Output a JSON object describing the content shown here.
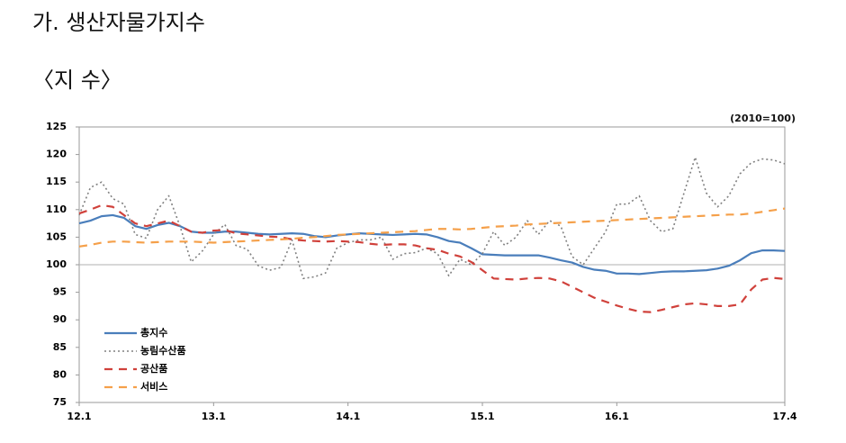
{
  "heading": "가. 생산자물가지수",
  "subheading": "〈지 수〉",
  "chart_data": {
    "type": "line",
    "note": "(2010=100)",
    "categories": [
      "12.1",
      null,
      null,
      null,
      null,
      null,
      null,
      null,
      null,
      null,
      null,
      null,
      "13.1",
      null,
      null,
      null,
      null,
      null,
      null,
      null,
      null,
      null,
      null,
      null,
      "14.1",
      null,
      null,
      null,
      null,
      null,
      null,
      null,
      null,
      null,
      null,
      null,
      "15.1",
      null,
      null,
      null,
      null,
      null,
      null,
      null,
      null,
      null,
      null,
      null,
      "16.1",
      null,
      null,
      null,
      null,
      null,
      null,
      null,
      null,
      null,
      null,
      null,
      null,
      null,
      null,
      "17.4"
    ],
    "ylim": [
      75,
      125
    ],
    "yticks": [
      75,
      80,
      85,
      90,
      95,
      100,
      105,
      110,
      115,
      120,
      125
    ],
    "reference_line": 100,
    "legend": "lower-left",
    "series": [
      {
        "name": "총지수",
        "color": "#4a7ebb",
        "style": "solid",
        "values": [
          107.5,
          108,
          108.8,
          109,
          108.5,
          107,
          106.5,
          107.2,
          107.6,
          107,
          106,
          105.8,
          105.8,
          106,
          106,
          105.8,
          105.6,
          105.5,
          105.6,
          105.7,
          105.6,
          105.2,
          105,
          105.3,
          105.5,
          105.7,
          105.6,
          105.5,
          105.4,
          105.5,
          105.6,
          105.5,
          105,
          104.3,
          104,
          103,
          101.9,
          101.8,
          101.7,
          101.7,
          101.7,
          101.7,
          101.3,
          100.8,
          100.4,
          99.6,
          99.1,
          98.9,
          98.4,
          98.4,
          98.3,
          98.5,
          98.7,
          98.8,
          98.8,
          98.9,
          99,
          99.3,
          99.8,
          100.8,
          102.1,
          102.6,
          102.6,
          102.5
        ]
      },
      {
        "name": "농림수산품",
        "color": "#808080",
        "style": "dotted",
        "values": [
          109,
          114,
          115,
          112,
          111,
          105.5,
          104.8,
          110,
          112.5,
          107,
          100.5,
          102.5,
          105.5,
          107.3,
          103.5,
          102.8,
          99.8,
          99,
          99.5,
          104.5,
          97.5,
          97.8,
          98.5,
          103,
          104,
          104.5,
          104.5,
          105,
          101,
          102,
          102.2,
          103,
          102,
          98,
          101,
          100,
          102,
          106,
          103.5,
          105,
          108,
          105.5,
          108,
          107,
          101.5,
          100,
          103,
          106,
          111,
          111,
          112.5,
          108,
          106,
          106.5,
          113,
          119.5,
          113,
          110.5,
          112.5,
          116.5,
          118.5,
          119.2,
          119,
          118.3
        ]
      },
      {
        "name": "공산품",
        "color": "#d0413b",
        "style": "dashed",
        "values": [
          109.3,
          110,
          110.8,
          110.5,
          109,
          107.5,
          107,
          107.5,
          108,
          107,
          106,
          105.8,
          106.2,
          106.3,
          105.7,
          105.5,
          105.3,
          105.1,
          105,
          104.6,
          104.4,
          104.3,
          104.2,
          104.3,
          104.2,
          104.1,
          103.8,
          103.6,
          103.7,
          103.7,
          103.5,
          103,
          102.7,
          102,
          101.5,
          100.5,
          99,
          97.5,
          97.4,
          97.3,
          97.5,
          97.6,
          97.5,
          97,
          96,
          95,
          94,
          93.3,
          92.6,
          92,
          91.5,
          91.4,
          91.8,
          92.3,
          92.8,
          93,
          92.8,
          92.5,
          92.5,
          92.8,
          95.5,
          97.3,
          97.6,
          97.4
        ]
      },
      {
        "name": "서비스",
        "color": "#f5a04a",
        "style": "dashed",
        "values": [
          103.3,
          103.6,
          104,
          104.2,
          104.2,
          104.1,
          104,
          104.1,
          104.2,
          104.2,
          104.2,
          104.1,
          104,
          104.1,
          104.2,
          104.3,
          104.4,
          104.5,
          104.6,
          104.7,
          104.9,
          105,
          105.2,
          105.4,
          105.5,
          105.6,
          105.7,
          105.8,
          105.9,
          106,
          106.1,
          106.3,
          106.5,
          106.5,
          106.4,
          106.5,
          106.7,
          106.9,
          107,
          107.1,
          107.3,
          107.4,
          107.5,
          107.6,
          107.7,
          107.8,
          107.9,
          108,
          108.1,
          108.2,
          108.3,
          108.4,
          108.5,
          108.6,
          108.7,
          108.8,
          108.9,
          109,
          109.1,
          109.1,
          109.3,
          109.6,
          109.9,
          110.2
        ]
      }
    ]
  }
}
